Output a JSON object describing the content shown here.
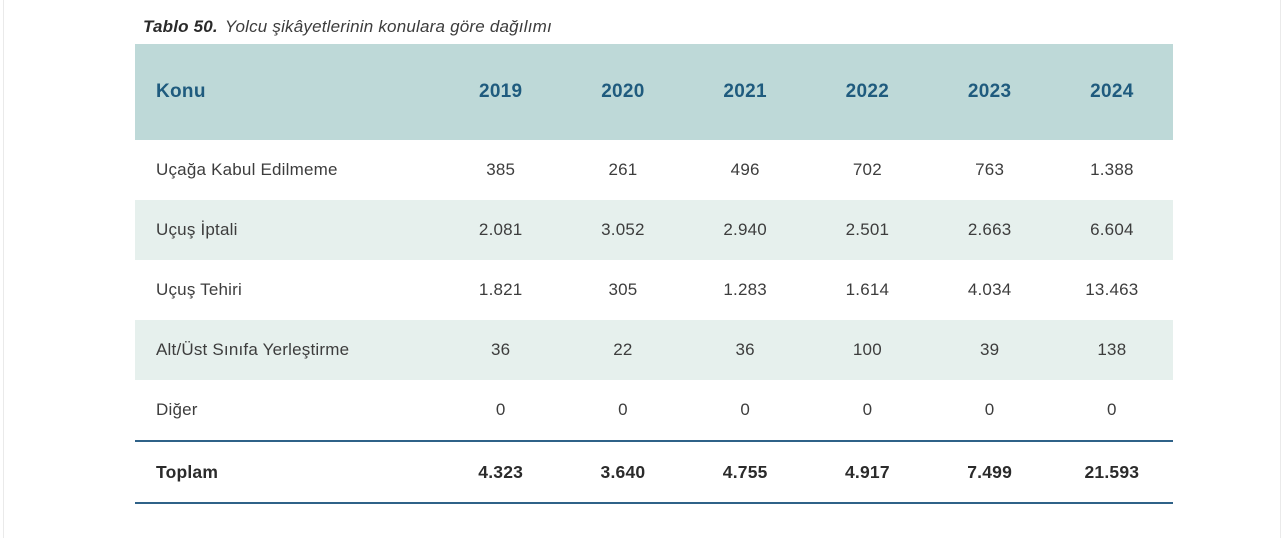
{
  "title": {
    "label": "Tablo 50.",
    "text": "Yolcu şikâyetlerinin konulara göre dağılımı"
  },
  "table": {
    "columns": [
      "Konu",
      "2019",
      "2020",
      "2021",
      "2022",
      "2023",
      "2024"
    ],
    "rows": [
      {
        "konu": "Uçağa Kabul Edilmeme",
        "values": [
          "385",
          "261",
          "496",
          "702",
          "763",
          "1.388"
        ]
      },
      {
        "konu": "Uçuş İptali",
        "values": [
          "2.081",
          "3.052",
          "2.940",
          "2.501",
          "2.663",
          "6.604"
        ]
      },
      {
        "konu": "Uçuş Tehiri",
        "values": [
          "1.821",
          "305",
          "1.283",
          "1.614",
          "4.034",
          "13.463"
        ]
      },
      {
        "konu": "Alt/Üst Sınıfa Yerleştirme",
        "values": [
          "36",
          "22",
          "36",
          "100",
          "39",
          "138"
        ]
      },
      {
        "konu": "Diğer",
        "values": [
          "0",
          "0",
          "0",
          "0",
          "0",
          "0"
        ]
      }
    ],
    "total": {
      "konu": "Toplam",
      "values": [
        "4.323",
        "3.640",
        "4.755",
        "4.917",
        "7.499",
        "21.593"
      ]
    }
  },
  "colors": {
    "header_bg": "#bed9d8",
    "header_text": "#1f5b7e",
    "alt_row_bg": "#e6f0ed",
    "body_text": "#3d3d3d",
    "rule_blue": "#2f6288"
  }
}
